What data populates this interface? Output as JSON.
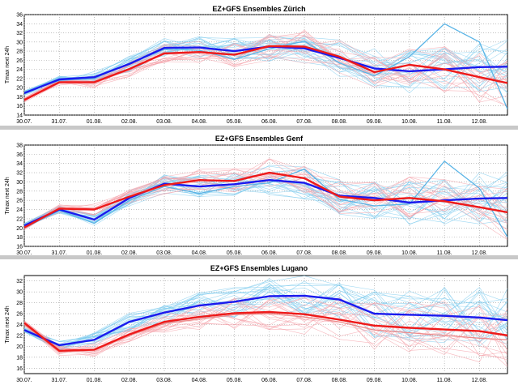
{
  "chart_data": [
    {
      "type": "line",
      "title": "EZ+GFS Ensembles Zürich",
      "ylabel": "Tmax next 24h",
      "xlabel": "",
      "categories": [
        "30.07.",
        "31.07.",
        "01.08.",
        "02.08.",
        "03.08.",
        "04.08.",
        "05.08.",
        "06.08.",
        "07.08.",
        "08.08.",
        "09.08.",
        "10.08.",
        "11.08.",
        "12.08."
      ],
      "x_extent": [
        0,
        13.8
      ],
      "ylim": [
        14,
        36
      ],
      "yticks": [
        14,
        16,
        18,
        20,
        22,
        24,
        26,
        28,
        30,
        32,
        34,
        36
      ],
      "grid": true,
      "series": [
        {
          "name": "GFS main",
          "color": "#1a1aee",
          "x": [
            0,
            1,
            2,
            3,
            4,
            5,
            6,
            7,
            8,
            9,
            10,
            11,
            12,
            13,
            13.8
          ],
          "values": [
            18.8,
            21.8,
            22.3,
            25.2,
            28.7,
            28.8,
            28.0,
            29.0,
            28.6,
            26.5,
            24.2,
            23.6,
            24.0,
            24.5,
            24.6
          ]
        },
        {
          "name": "EZ main",
          "color": "#ee1a1a",
          "x": [
            0,
            1,
            2,
            3,
            4,
            5,
            6,
            7,
            8,
            9,
            10,
            11,
            12,
            13,
            13.8
          ],
          "values": [
            17.3,
            21.2,
            21.2,
            24.1,
            27.5,
            27.8,
            27.2,
            29.1,
            29.0,
            26.8,
            23.4,
            25.0,
            24.0,
            22.3,
            21.0
          ]
        },
        {
          "name": "GFS member",
          "color": "#5ab4e6",
          "x": [
            0,
            1,
            2,
            3,
            4,
            5,
            6,
            7,
            8,
            9,
            10,
            11,
            12,
            13,
            13.8
          ],
          "values": [
            19.0,
            21.6,
            22.0,
            25.4,
            28.4,
            28.2,
            26.2,
            28.5,
            30.2,
            25.4,
            22.6,
            26.8,
            34.0,
            30.0,
            15.3
          ]
        }
      ]
    },
    {
      "type": "line",
      "title": "EZ+GFS Ensembles Genf",
      "ylabel": "Tmax next 24h",
      "xlabel": "",
      "categories": [
        "30.07.",
        "31.07.",
        "01.08.",
        "02.08.",
        "03.08.",
        "04.08.",
        "05.08.",
        "06.08.",
        "07.08.",
        "08.08.",
        "09.08.",
        "10.08.",
        "11.08.",
        "12.08."
      ],
      "x_extent": [
        0,
        13.8
      ],
      "ylim": [
        16,
        38
      ],
      "yticks": [
        16,
        18,
        20,
        22,
        24,
        26,
        28,
        30,
        32,
        34,
        36,
        38
      ],
      "grid": true,
      "series": [
        {
          "name": "GFS main",
          "color": "#1a1aee",
          "x": [
            0,
            1,
            2,
            3,
            4,
            5,
            6,
            7,
            8,
            9,
            10,
            11,
            12,
            13,
            13.8
          ],
          "values": [
            20.5,
            24.0,
            21.8,
            26.5,
            29.6,
            29.0,
            29.5,
            30.4,
            29.8,
            27.0,
            26.5,
            25.5,
            26.0,
            26.4,
            26.5
          ]
        },
        {
          "name": "EZ main",
          "color": "#ee1a1a",
          "x": [
            0,
            1,
            2,
            3,
            4,
            5,
            6,
            7,
            8,
            9,
            10,
            11,
            12,
            13,
            13.8
          ],
          "values": [
            20.1,
            24.2,
            24.0,
            26.8,
            29.3,
            30.4,
            30.2,
            32.0,
            30.8,
            26.8,
            26.0,
            26.5,
            25.8,
            24.5,
            23.4
          ]
        },
        {
          "name": "GFS member",
          "color": "#5ab4e6",
          "x": [
            0,
            1,
            2,
            3,
            4,
            5,
            6,
            7,
            8,
            9,
            10,
            11,
            12,
            13,
            13.8
          ],
          "values": [
            20.0,
            23.8,
            21.0,
            26.0,
            29.0,
            27.5,
            29.0,
            29.8,
            32.8,
            26.2,
            24.8,
            25.2,
            34.5,
            28.6,
            18.0
          ]
        }
      ]
    },
    {
      "type": "line",
      "title": "EZ+GFS Ensembles Lugano",
      "ylabel": "Tmax next 24h",
      "xlabel": "",
      "categories": [
        "30.07.",
        "31.07.",
        "01.08.",
        "02.08.",
        "03.08.",
        "04.08.",
        "05.08.",
        "06.08.",
        "07.08.",
        "08.08.",
        "09.08.",
        "10.08.",
        "11.08.",
        "12.08."
      ],
      "x_extent": [
        0,
        13.8
      ],
      "ylim": [
        15,
        33
      ],
      "yticks": [
        16,
        18,
        20,
        22,
        24,
        26,
        28,
        30,
        32
      ],
      "grid": true,
      "series": [
        {
          "name": "GFS main",
          "color": "#1a1aee",
          "x": [
            0,
            1,
            2,
            3,
            4,
            5,
            6,
            7,
            8,
            9,
            10,
            11,
            12,
            13,
            13.8
          ],
          "values": [
            23.0,
            20.2,
            21.2,
            24.5,
            26.2,
            27.5,
            28.2,
            29.2,
            29.3,
            28.6,
            26.0,
            25.8,
            25.6,
            25.3,
            24.8
          ]
        },
        {
          "name": "EZ main",
          "color": "#ee1a1a",
          "x": [
            0,
            1,
            2,
            3,
            4,
            5,
            6,
            7,
            8,
            9,
            10,
            11,
            12,
            13,
            13.8
          ],
          "values": [
            24.3,
            19.2,
            19.4,
            22.2,
            24.5,
            25.4,
            26.1,
            26.3,
            25.9,
            24.9,
            23.8,
            23.4,
            23.1,
            22.8,
            22.0
          ]
        },
        {
          "name": "EZ member",
          "color": "#ee8a8a",
          "x": [
            0,
            1,
            2,
            3,
            4,
            5,
            6,
            7,
            8,
            9,
            10,
            11,
            12,
            13,
            13.8
          ],
          "values": [
            24.0,
            19.0,
            19.3,
            22.0,
            24.2,
            25.0,
            25.8,
            26.0,
            25.4,
            24.5,
            23.0,
            22.5,
            22.0,
            21.5,
            21.2
          ]
        }
      ]
    }
  ]
}
